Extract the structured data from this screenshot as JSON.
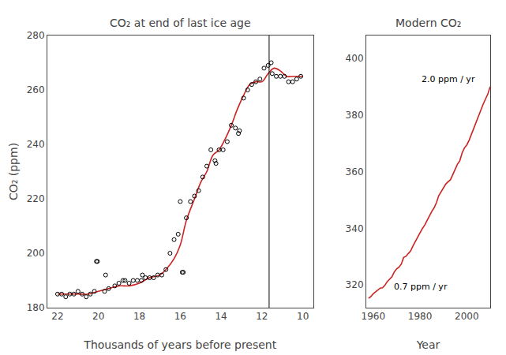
{
  "chart_data": [
    {
      "type": "line",
      "title": "CO₂ at end of last ice age",
      "xlabel": "Thousands of years before present",
      "ylabel": "CO₂ (ppm)",
      "xlim": [
        22.5,
        9.5
      ],
      "ylim": [
        180,
        280
      ],
      "xticks": [
        22,
        20,
        18,
        16,
        14,
        12,
        10
      ],
      "yticks": [
        180,
        200,
        220,
        240,
        260,
        280
      ],
      "grid": false,
      "vlines": [
        11.65
      ],
      "series": [
        {
          "type": "line",
          "line_style": "smooth",
          "color": "#cc2222",
          "x": [
            22.0,
            21.5,
            21.0,
            20.5,
            20.0,
            19.5,
            19.0,
            18.5,
            18.0,
            17.5,
            17.0,
            16.7,
            16.3,
            16.0,
            15.7,
            15.3,
            15.0,
            14.7,
            14.4,
            14.1,
            13.8,
            13.5,
            13.2,
            12.9,
            12.6,
            12.3,
            12.0,
            11.7,
            11.4,
            11.1,
            10.8,
            10.5,
            10.2,
            10.0
          ],
          "values": [
            185,
            185,
            185,
            185,
            186,
            187,
            188,
            188,
            189,
            191,
            192,
            194,
            198,
            203,
            212,
            220,
            226,
            230,
            236,
            238,
            242,
            247,
            253,
            258,
            262,
            263,
            263,
            266,
            268,
            267,
            265,
            265,
            265,
            265
          ]
        },
        {
          "type": "scatter",
          "marker": "circle-open",
          "color": "#000000",
          "x": [
            22.0,
            21.8,
            21.6,
            21.4,
            21.2,
            21.0,
            20.8,
            20.6,
            20.4,
            20.2,
            20.05,
            19.7,
            19.5,
            19.2,
            19.0,
            18.8,
            18.5,
            18.3,
            18.1,
            17.9,
            17.7,
            17.5,
            17.3,
            17.1,
            16.9,
            16.7,
            16.5,
            16.3,
            16.1,
            15.9,
            15.7,
            15.5,
            15.3,
            15.1,
            14.9,
            14.7,
            14.5,
            14.3,
            14.1,
            13.9,
            13.7,
            13.5,
            13.3,
            13.1,
            12.9,
            12.7,
            12.5,
            12.3,
            12.1,
            11.9,
            11.7,
            11.5,
            11.3,
            11.1,
            10.9,
            10.7,
            10.5,
            10.3,
            10.1,
            20.1,
            19.65,
            18.7,
            17.85,
            16.0,
            15.85,
            14.25,
            13.15,
            11.55
          ],
          "values": [
            185,
            185,
            184,
            185,
            185,
            186,
            185,
            184,
            185,
            186,
            197,
            186,
            187,
            188,
            189,
            190,
            189,
            190,
            190,
            190,
            191,
            191,
            191,
            192,
            192,
            194,
            200,
            205,
            207,
            193,
            213,
            219,
            221,
            223,
            228,
            232,
            238,
            234,
            238,
            238,
            241,
            247,
            246,
            245,
            257,
            260,
            262,
            263,
            264,
            268,
            269,
            266,
            265,
            265,
            265,
            263,
            263,
            264,
            265,
            197,
            192,
            190,
            192,
            219,
            193,
            233,
            244,
            270
          ]
        }
      ]
    },
    {
      "type": "line",
      "title": "Modern CO₂",
      "xlabel": "Year",
      "xlim": [
        1957,
        2010
      ],
      "ylim": [
        312,
        408
      ],
      "xticks": [
        1960,
        1980,
        2000
      ],
      "yticks": [
        320,
        340,
        360,
        380,
        400
      ],
      "grid": false,
      "annotations": [
        {
          "text": "2.0 ppm / yr",
          "x": 1980,
          "y": 395
        },
        {
          "text": "0.7 ppm / yr",
          "x": 1968,
          "y": 317
        }
      ],
      "series": [
        {
          "type": "line",
          "color": "#cc2222",
          "x": [
            1958,
            1959,
            1960,
            1961,
            1962,
            1963,
            1964,
            1965,
            1966,
            1967,
            1968,
            1969,
            1970,
            1971,
            1972,
            1973,
            1974,
            1975,
            1976,
            1977,
            1978,
            1979,
            1980,
            1981,
            1982,
            1983,
            1984,
            1985,
            1986,
            1987,
            1988,
            1989,
            1990,
            1991,
            1992,
            1993,
            1994,
            1995,
            1996,
            1997,
            1998,
            1999,
            2000,
            2001,
            2002,
            2003,
            2004,
            2005,
            2006,
            2007,
            2008,
            2009,
            2010
          ],
          "values": [
            315.3,
            315.9,
            316.9,
            317.6,
            318.4,
            318.9,
            319.0,
            319.9,
            321.2,
            322.1,
            322.9,
            324.6,
            325.7,
            326.3,
            327.4,
            329.7,
            330.1,
            331.1,
            332.0,
            333.8,
            335.4,
            336.8,
            338.7,
            339.9,
            341.1,
            342.8,
            344.4,
            345.9,
            347.2,
            349.0,
            351.5,
            352.9,
            354.2,
            355.6,
            356.4,
            357.1,
            358.9,
            360.9,
            362.6,
            363.8,
            366.6,
            368.4,
            369.4,
            371.1,
            373.2,
            375.8,
            377.5,
            379.8,
            381.9,
            383.8,
            385.6,
            387.4,
            390.0
          ]
        }
      ]
    }
  ]
}
